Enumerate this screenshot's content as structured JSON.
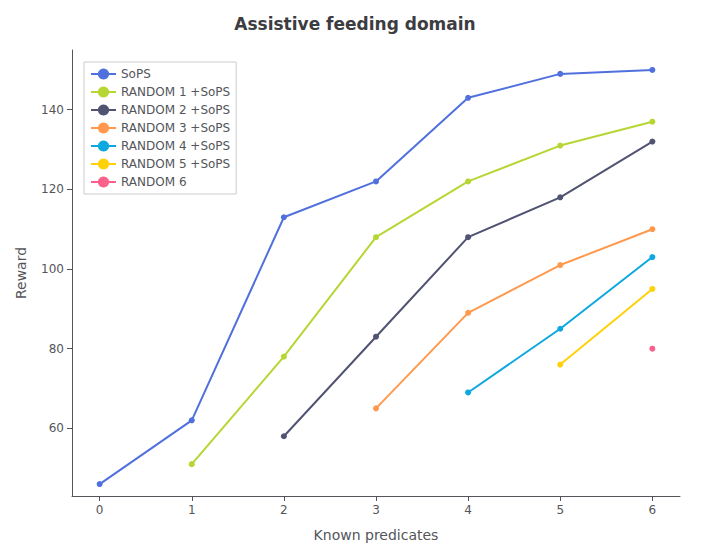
{
  "chart_data": {
    "type": "line",
    "title": "Assistive feeding domain",
    "xlabel": "Known predicates",
    "ylabel": "Reward",
    "x": [
      0,
      1,
      2,
      3,
      4,
      5,
      6
    ],
    "series": [
      {
        "name": "SoPS",
        "values": [
          46,
          62,
          113,
          122,
          143,
          149,
          150
        ]
      },
      {
        "name": "RANDOM 1 +SoPS",
        "values": [
          null,
          51,
          78,
          108,
          122,
          131,
          137
        ]
      },
      {
        "name": "RANDOM 2 +SoPS",
        "values": [
          null,
          null,
          58,
          83,
          108,
          118,
          132
        ]
      },
      {
        "name": "RANDOM 3 +SoPS",
        "values": [
          null,
          null,
          null,
          65,
          89,
          101,
          110
        ]
      },
      {
        "name": "RANDOM 4 +SoPS",
        "values": [
          null,
          null,
          null,
          null,
          69,
          85,
          103
        ]
      },
      {
        "name": "RANDOM 5 +SoPS",
        "values": [
          null,
          null,
          null,
          null,
          null,
          76,
          95
        ]
      },
      {
        "name": "RANDOM 6",
        "values": [
          null,
          null,
          null,
          null,
          null,
          null,
          80
        ]
      }
    ],
    "xlim": [
      -0.3,
      6.3
    ],
    "ylim": [
      43,
      155
    ],
    "xticks": [
      0,
      1,
      2,
      3,
      4,
      5,
      6
    ],
    "yticks": [
      60,
      80,
      100,
      120,
      140
    ],
    "marker": "circle",
    "grid": false,
    "legend": "upper left"
  }
}
